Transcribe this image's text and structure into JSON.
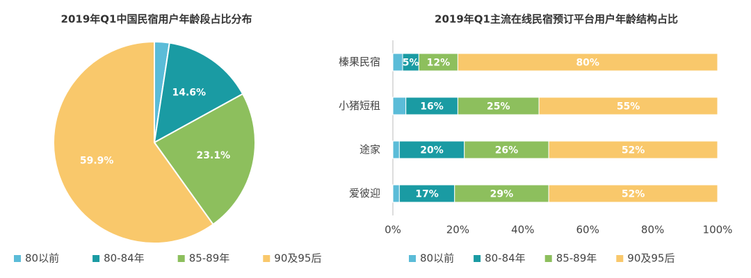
{
  "chart_data": [
    {
      "type": "pie",
      "title": "2019年Q1中国民宿用户年龄段占比分布",
      "categories": [
        "80以前",
        "80-84年",
        "85-89年",
        "90及95后"
      ],
      "values": [
        2.4,
        14.6,
        23.1,
        59.9
      ],
      "value_labels": [
        null,
        "14.6%",
        "23.1%",
        "59.9%"
      ],
      "colors": [
        "#5bbcd8",
        "#1a9ba3",
        "#8dbf5d",
        "#f9c86b"
      ]
    },
    {
      "type": "bar",
      "title": "2019年Q1主流在线民宿预订平台用户年龄结构占比",
      "categories": [
        "榛果民宿",
        "小猪短租",
        "途家",
        "爱彼迎"
      ],
      "series": [
        {
          "name": "80以前",
          "color": "#5bbcd8",
          "values": [
            3,
            4,
            2,
            2
          ],
          "value_labels": [
            null,
            null,
            null,
            null
          ]
        },
        {
          "name": "80-84年",
          "color": "#1a9ba3",
          "values": [
            5,
            16,
            20,
            17
          ],
          "value_labels": [
            "5%",
            "16%",
            "20%",
            "17%"
          ]
        },
        {
          "name": "85-89年",
          "color": "#8dbf5d",
          "values": [
            12,
            25,
            26,
            29
          ],
          "value_labels": [
            "12%",
            "25%",
            "26%",
            "29%"
          ]
        },
        {
          "name": "90及95后",
          "color": "#f9c86b",
          "values": [
            80,
            55,
            52,
            52
          ],
          "value_labels": [
            "80%",
            "55%",
            "52%",
            "52%"
          ]
        }
      ],
      "xlim": [
        0,
        100
      ],
      "xticks": [
        {
          "value": 0,
          "label": "0%"
        },
        {
          "value": 20,
          "label": "20%"
        },
        {
          "value": 40,
          "label": "40%"
        },
        {
          "value": 60,
          "label": "60%"
        },
        {
          "value": 80,
          "label": "80%"
        },
        {
          "value": 100,
          "label": "100%"
        }
      ]
    }
  ]
}
